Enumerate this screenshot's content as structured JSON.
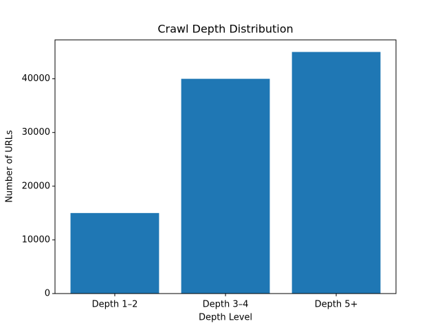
{
  "chart_data": {
    "type": "bar",
    "title": "Crawl Depth Distribution",
    "x_label": "Depth Level",
    "y_label": "Number of URLs",
    "categories": [
      "Depth 1–2",
      "Depth 3–4",
      "Depth 5+"
    ],
    "values": [
      15000,
      40000,
      45000
    ],
    "color": "#1f77b4",
    "ylim": [
      0,
      47250
    ],
    "yticks": [
      0,
      10000,
      20000,
      30000,
      40000
    ],
    "grid": false
  }
}
